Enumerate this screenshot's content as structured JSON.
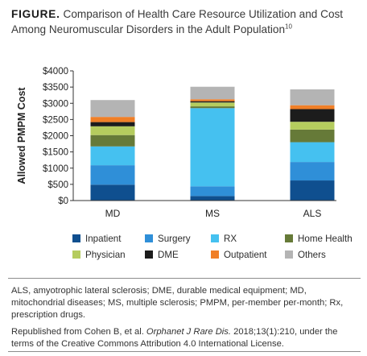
{
  "figure": {
    "label": "FIGURE.",
    "title": "Comparison of Health Care Resource Utilization and Cost Among Neuromuscular Disorders in the Adult Population",
    "reference": "10"
  },
  "chart_data": {
    "type": "bar",
    "stacked": true,
    "categories": [
      "MD",
      "MS",
      "ALS"
    ],
    "ylabel": "Allowed PMPM Cost",
    "xlabel": "",
    "ylim": [
      0,
      4000
    ],
    "yticks": [
      "$0",
      "$500",
      "$1000",
      "$1500",
      "$2000",
      "$2500",
      "$3000",
      "$3500",
      "$4000"
    ],
    "grid": false,
    "legend_position": "bottom",
    "series": [
      {
        "name": "Inpatient",
        "color": "#0f4f8f",
        "values": [
          490,
          140,
          620
        ]
      },
      {
        "name": "Surgery",
        "color": "#2f8fd8",
        "values": [
          600,
          300,
          570
        ]
      },
      {
        "name": "RX",
        "color": "#45c1f0",
        "values": [
          580,
          2410,
          610
        ]
      },
      {
        "name": "Home Health",
        "color": "#667a38",
        "values": [
          350,
          55,
          390
        ]
      },
      {
        "name": "Physician",
        "color": "#b5cc5e",
        "values": [
          270,
          120,
          240
        ]
      },
      {
        "name": "DME",
        "color": "#1c1c1c",
        "values": [
          130,
          40,
          390
        ]
      },
      {
        "name": "Outpatient",
        "color": "#f07f27",
        "values": [
          160,
          60,
          120
        ]
      },
      {
        "name": "Others",
        "color": "#b4b4b4",
        "values": [
          520,
          385,
          490
        ]
      }
    ]
  },
  "notes": {
    "abbreviations": "ALS, amyotrophic lateral sclerosis; DME, durable medical equipment; MD, mitochondrial diseases; MS, multiple sclerosis; PMPM, per-member per-month; Rx, prescription drugs.",
    "source_prefix": "Republished from Cohen B, et al. ",
    "source_journal": "Orphanet J Rare Dis.",
    "source_suffix": " 2018;13(1):210, under the terms of the Creative Commons Attribution 4.0 International License."
  }
}
